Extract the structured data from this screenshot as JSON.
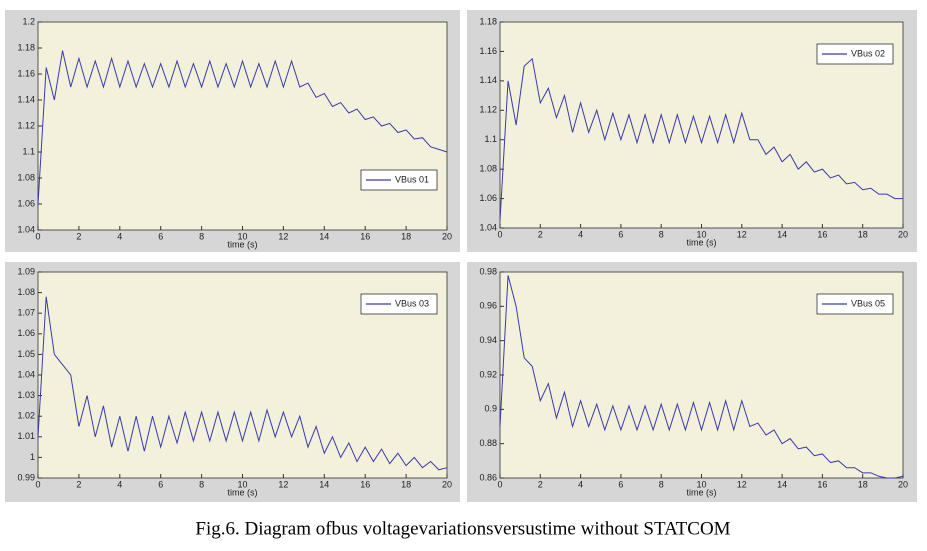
{
  "caption": "Fig.6. Diagram ofbus voltagevariationsversustime without STATCOM",
  "chart_data": [
    {
      "type": "line",
      "xlabel": "time (s)",
      "legend": "lower right",
      "xlim": [
        0,
        20
      ],
      "xticks": [
        0,
        2,
        4,
        6,
        8,
        10,
        12,
        14,
        16,
        18,
        20
      ],
      "ylim": [
        1.04,
        1.2
      ],
      "yticks": [
        1.04,
        1.06,
        1.08,
        1.1,
        1.12,
        1.14,
        1.16,
        1.18,
        1.2
      ],
      "x": [
        0,
        0.4,
        0.8,
        1.2,
        1.6,
        2,
        2.4,
        2.8,
        3.2,
        3.6,
        4,
        4.4,
        4.8,
        5.2,
        5.6,
        6,
        6.4,
        6.8,
        7.2,
        7.6,
        8,
        8.4,
        8.8,
        9.2,
        9.6,
        10,
        10.4,
        10.8,
        11.2,
        11.6,
        12,
        12.4,
        12.8,
        13.2,
        13.6,
        14,
        14.4,
        14.8,
        15.2,
        15.6,
        16,
        16.4,
        16.8,
        17.2,
        17.6,
        18,
        18.4,
        18.8,
        19.2,
        19.6,
        20
      ],
      "series": [
        {
          "name": "VBus 01",
          "color": "#3a3aa8",
          "values": [
            1.06,
            1.165,
            1.14,
            1.178,
            1.15,
            1.172,
            1.15,
            1.17,
            1.15,
            1.172,
            1.15,
            1.17,
            1.15,
            1.168,
            1.15,
            1.168,
            1.15,
            1.17,
            1.15,
            1.168,
            1.15,
            1.17,
            1.15,
            1.168,
            1.15,
            1.17,
            1.15,
            1.168,
            1.15,
            1.17,
            1.15,
            1.17,
            1.15,
            1.153,
            1.142,
            1.145,
            1.135,
            1.138,
            1.13,
            1.133,
            1.125,
            1.127,
            1.12,
            1.122,
            1.115,
            1.117,
            1.11,
            1.111,
            1.104,
            1.102,
            1.1
          ]
        }
      ]
    },
    {
      "type": "line",
      "xlabel": "time (s)",
      "legend": "upper right",
      "xlim": [
        0,
        20
      ],
      "xticks": [
        0,
        2,
        4,
        6,
        8,
        10,
        12,
        14,
        16,
        18,
        20
      ],
      "ylim": [
        1.04,
        1.18
      ],
      "yticks": [
        1.04,
        1.06,
        1.08,
        1.1,
        1.12,
        1.14,
        1.16,
        1.18
      ],
      "x": [
        0,
        0.4,
        0.8,
        1.2,
        1.6,
        2,
        2.4,
        2.8,
        3.2,
        3.6,
        4,
        4.4,
        4.8,
        5.2,
        5.6,
        6,
        6.4,
        6.8,
        7.2,
        7.6,
        8,
        8.4,
        8.8,
        9.2,
        9.6,
        10,
        10.4,
        10.8,
        11.2,
        11.6,
        12,
        12.4,
        12.8,
        13.2,
        13.6,
        14,
        14.4,
        14.8,
        15.2,
        15.6,
        16,
        16.4,
        16.8,
        17.2,
        17.6,
        18,
        18.4,
        18.8,
        19.2,
        19.6,
        20
      ],
      "series": [
        {
          "name": "VBus 02",
          "color": "#3a3aa8",
          "values": [
            1.045,
            1.14,
            1.11,
            1.15,
            1.155,
            1.125,
            1.135,
            1.115,
            1.13,
            1.105,
            1.125,
            1.105,
            1.12,
            1.1,
            1.118,
            1.1,
            1.117,
            1.098,
            1.117,
            1.098,
            1.117,
            1.098,
            1.117,
            1.098,
            1.116,
            1.098,
            1.116,
            1.098,
            1.117,
            1.098,
            1.118,
            1.1,
            1.1,
            1.09,
            1.095,
            1.085,
            1.09,
            1.08,
            1.085,
            1.078,
            1.08,
            1.074,
            1.076,
            1.07,
            1.071,
            1.066,
            1.067,
            1.063,
            1.063,
            1.06,
            1.06
          ]
        }
      ]
    },
    {
      "type": "line",
      "xlabel": "time (s)",
      "legend": "upper right",
      "xlim": [
        0,
        20
      ],
      "xticks": [
        0,
        2,
        4,
        6,
        8,
        10,
        12,
        14,
        16,
        18,
        20
      ],
      "ylim": [
        0.99,
        1.09
      ],
      "yticks": [
        0.99,
        1,
        1.01,
        1.02,
        1.03,
        1.04,
        1.05,
        1.06,
        1.07,
        1.08,
        1.09
      ],
      "x": [
        0,
        0.4,
        0.8,
        1.2,
        1.6,
        2,
        2.4,
        2.8,
        3.2,
        3.6,
        4,
        4.4,
        4.8,
        5.2,
        5.6,
        6,
        6.4,
        6.8,
        7.2,
        7.6,
        8,
        8.4,
        8.8,
        9.2,
        9.6,
        10,
        10.4,
        10.8,
        11.2,
        11.6,
        12,
        12.4,
        12.8,
        13.2,
        13.6,
        14,
        14.4,
        14.8,
        15.2,
        15.6,
        16,
        16.4,
        16.8,
        17.2,
        17.6,
        18,
        18.4,
        18.8,
        19.2,
        19.6,
        20
      ],
      "series": [
        {
          "name": "VBus 03",
          "color": "#3a3aa8",
          "values": [
            1.01,
            1.078,
            1.05,
            1.045,
            1.04,
            1.015,
            1.03,
            1.01,
            1.025,
            1.005,
            1.02,
            1.003,
            1.02,
            1.003,
            1.02,
            1.005,
            1.02,
            1.007,
            1.022,
            1.008,
            1.022,
            1.008,
            1.022,
            1.008,
            1.022,
            1.008,
            1.022,
            1.008,
            1.023,
            1.01,
            1.022,
            1.01,
            1.02,
            1.005,
            1.015,
            1.002,
            1.01,
            1.0,
            1.007,
            0.998,
            1.005,
            0.998,
            1.004,
            0.997,
            1.002,
            0.996,
            1.0,
            0.995,
            0.998,
            0.994,
            0.995
          ]
        }
      ]
    },
    {
      "type": "line",
      "xlabel": "time (s)",
      "legend": "upper right",
      "xlim": [
        0,
        20
      ],
      "xticks": [
        0,
        2,
        4,
        6,
        8,
        10,
        12,
        14,
        16,
        18,
        20
      ],
      "ylim": [
        0.86,
        0.98
      ],
      "yticks": [
        0.86,
        0.88,
        0.9,
        0.92,
        0.94,
        0.96,
        0.98
      ],
      "x": [
        0,
        0.4,
        0.8,
        1.2,
        1.6,
        2,
        2.4,
        2.8,
        3.2,
        3.6,
        4,
        4.4,
        4.8,
        5.2,
        5.6,
        6,
        6.4,
        6.8,
        7.2,
        7.6,
        8,
        8.4,
        8.8,
        9.2,
        9.6,
        10,
        10.4,
        10.8,
        11.2,
        11.6,
        12,
        12.4,
        12.8,
        13.2,
        13.6,
        14,
        14.4,
        14.8,
        15.2,
        15.6,
        16,
        16.4,
        16.8,
        17.2,
        17.6,
        18,
        18.4,
        18.8,
        19.2,
        19.6,
        20
      ],
      "series": [
        {
          "name": "VBus 05",
          "color": "#3a3aa8",
          "values": [
            0.89,
            0.978,
            0.96,
            0.93,
            0.925,
            0.905,
            0.915,
            0.895,
            0.91,
            0.89,
            0.905,
            0.89,
            0.903,
            0.888,
            0.902,
            0.888,
            0.902,
            0.888,
            0.902,
            0.888,
            0.903,
            0.888,
            0.903,
            0.888,
            0.904,
            0.888,
            0.904,
            0.888,
            0.905,
            0.888,
            0.905,
            0.89,
            0.892,
            0.885,
            0.888,
            0.88,
            0.883,
            0.877,
            0.878,
            0.873,
            0.874,
            0.869,
            0.87,
            0.866,
            0.866,
            0.863,
            0.863,
            0.861,
            0.86,
            0.86,
            0.861
          ]
        }
      ]
    }
  ]
}
